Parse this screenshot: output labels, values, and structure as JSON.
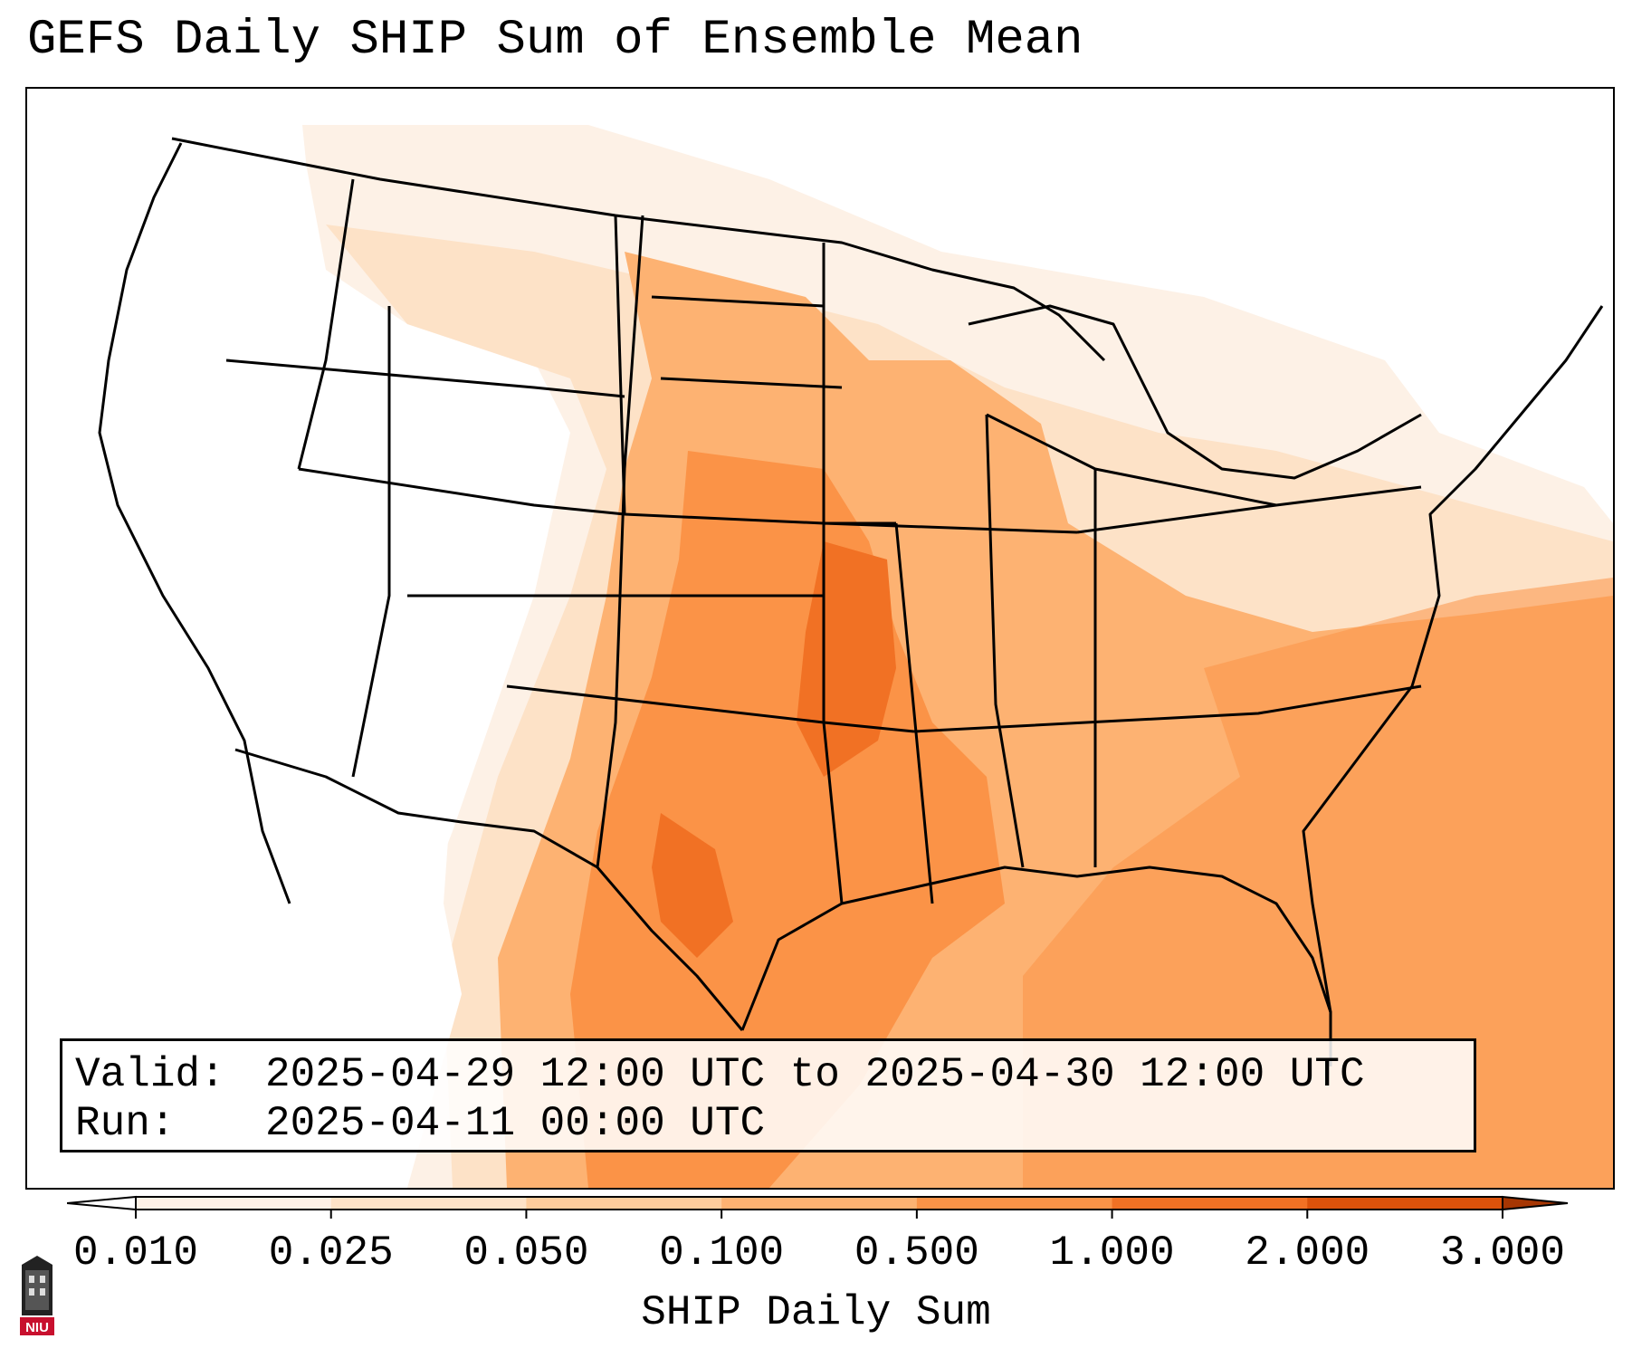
{
  "title": "GEFS Daily SHIP Sum of Ensemble Mean",
  "info": {
    "valid_label": "Valid:",
    "valid_value": "2025-04-29 12:00 UTC to 2025-04-30 12:00 UTC",
    "run_label": "Run:",
    "run_value": "2025-04-11 00:00 UTC"
  },
  "colorbar": {
    "label": "SHIP Daily Sum",
    "ticks": [
      "0.010",
      "0.025",
      "0.050",
      "0.100",
      "0.500",
      "1.000",
      "2.000",
      "3.000"
    ],
    "colors": [
      "#fdf1e6",
      "#fde2c7",
      "#fdcc9c",
      "#fdb272",
      "#fb9347",
      "#f17124",
      "#db520b",
      "#b23e02"
    ],
    "under_color": "#ffffff",
    "over_color": "#a63603",
    "extend": "both"
  },
  "map": {
    "projection": "Lambert conformal, CONUS",
    "field": "SHIP daily sum, ensemble mean",
    "max_region": "central/southern Plains (Kansas, Oklahoma, central Texas)",
    "outline_color": "#000000"
  },
  "logo": {
    "text": "NIU",
    "color": "#c8102e"
  }
}
